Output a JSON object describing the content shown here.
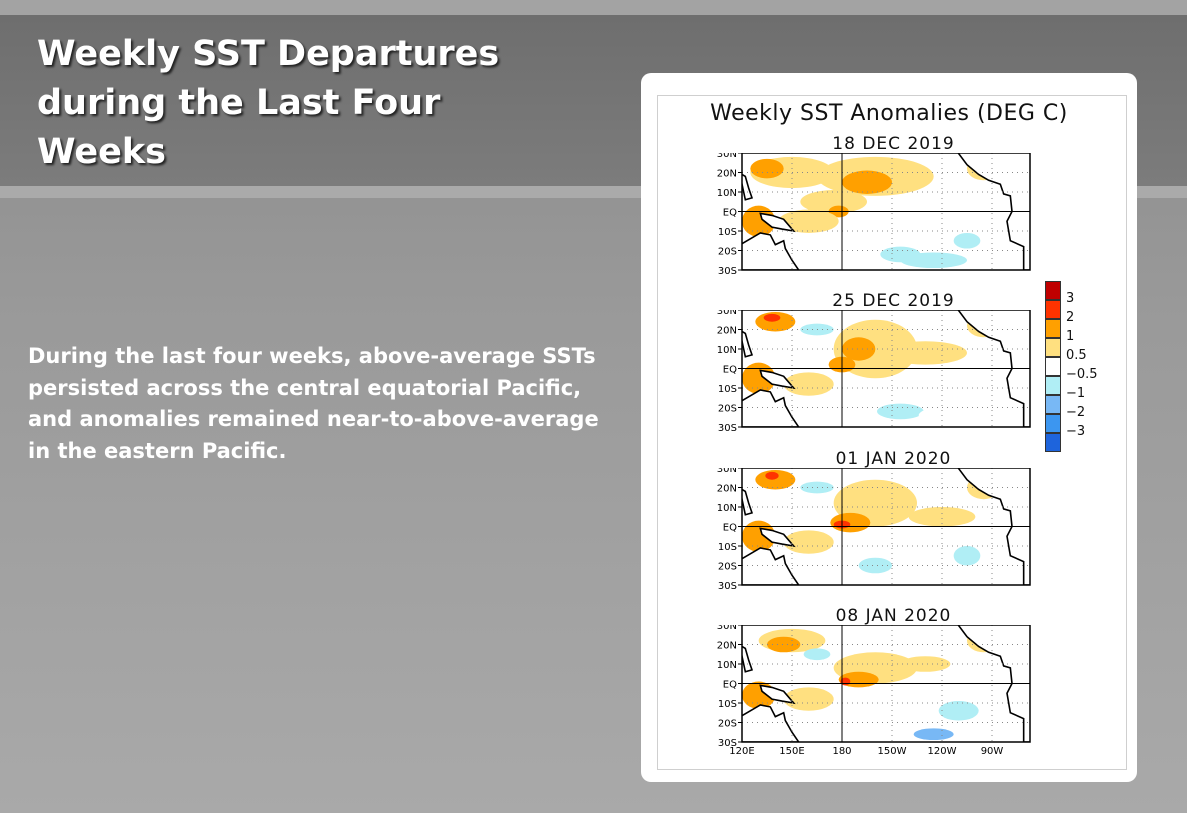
{
  "slide": {
    "title": "Weekly SST Departures during the Last Four Weeks",
    "body": "During the last four weeks, above-average SSTs persisted across the central equatorial Pacific, and anomalies remained near-to-above-average in the eastern Pacific."
  },
  "figure": {
    "title": "Weekly SST Anomalies (DEG C)",
    "panels": [
      {
        "date": "18 DEC 2019"
      },
      {
        "date": "25 DEC 2019"
      },
      {
        "date": "01 JAN 2020"
      },
      {
        "date": "08 JAN 2020"
      }
    ],
    "lat_labels": [
      "30N",
      "20N",
      "10N",
      "EQ",
      "10S",
      "20S",
      "30S"
    ],
    "lon_labels": [
      "120E",
      "150E",
      "180",
      "150W",
      "120W",
      "90W"
    ],
    "legend": {
      "labels": [
        "3",
        "2",
        "1",
        "0.5",
        "−0.5",
        "−1",
        "−2",
        "−3"
      ],
      "colors": [
        "#c00000",
        "#ff3300",
        "#ffa000",
        "#ffe080",
        "#ffffff",
        "#b0eef5",
        "#78b8f5",
        "#3c96f0",
        "#1e64dc"
      ]
    }
  }
}
